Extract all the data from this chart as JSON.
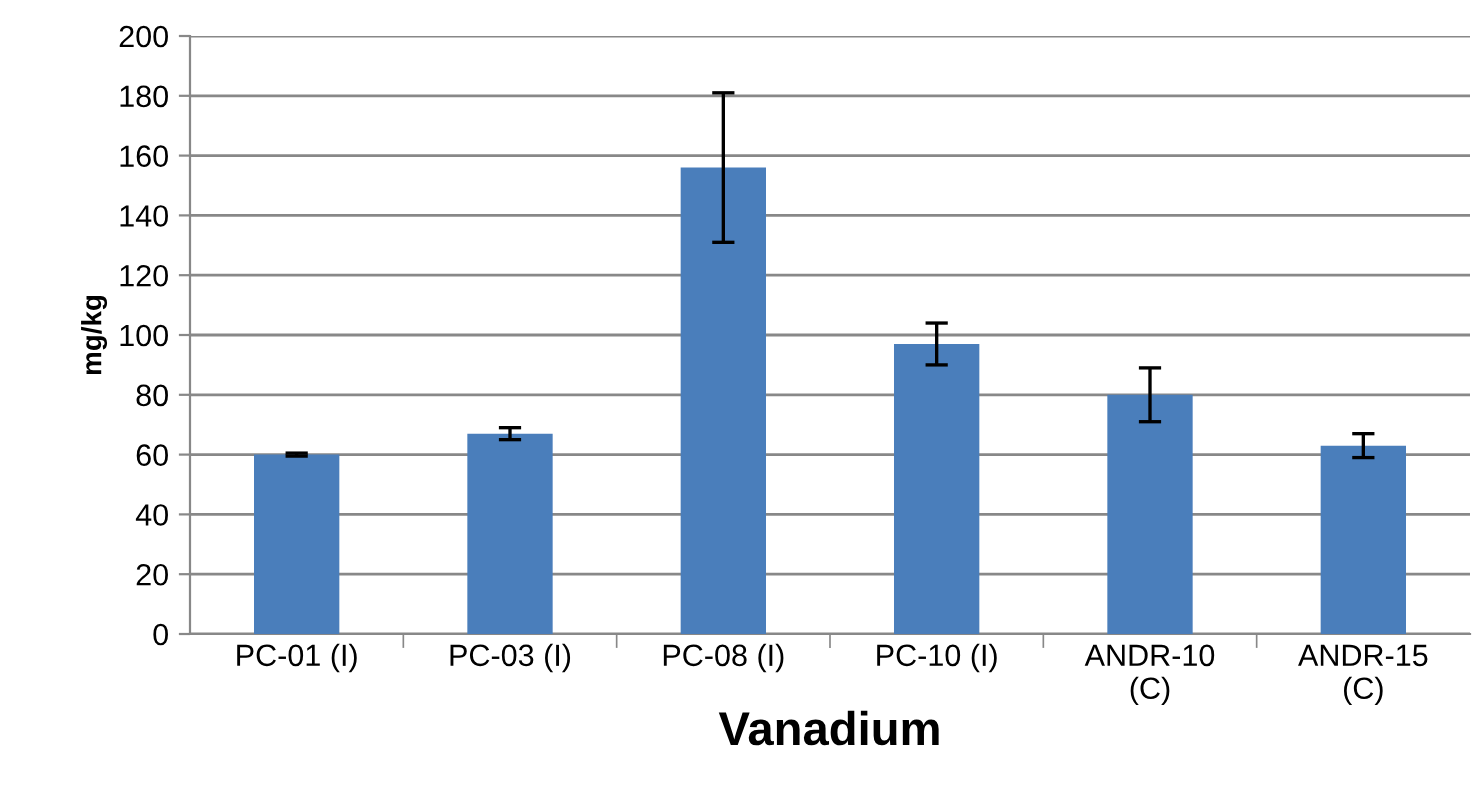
{
  "chart_data": {
    "type": "bar",
    "xlabel": "Vanadium",
    "ylabel": "mg/kg",
    "categories": [
      "PC-01 (I)",
      "PC-03 (I)",
      "PC-08 (I)",
      "PC-10 (I)",
      "ANDR-10\n(C)",
      "ANDR-15\n(C)"
    ],
    "values": [
      60,
      67,
      156,
      97,
      80,
      63
    ],
    "errors": [
      0.5,
      2,
      25,
      7,
      9,
      4
    ],
    "color": "#4a7ebb",
    "ylim": [
      0,
      200
    ],
    "yticks": [
      0,
      20,
      40,
      60,
      80,
      100,
      120,
      140,
      160,
      180,
      200
    ],
    "grid": "y",
    "legend": false
  }
}
